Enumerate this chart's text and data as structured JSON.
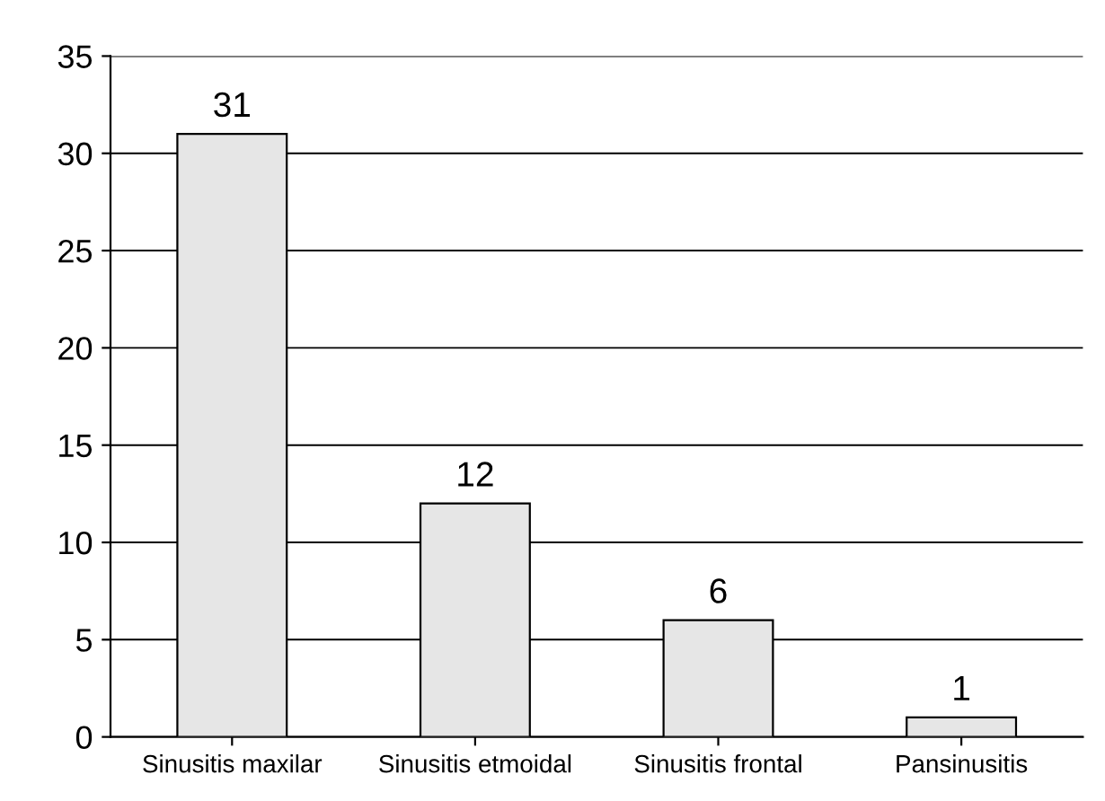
{
  "chart_data": {
    "type": "bar",
    "categories": [
      "Sinusitis maxilar",
      "Sinusitis etmoidal",
      "Sinusitis frontal",
      "Pansinusitis"
    ],
    "values": [
      31,
      12,
      6,
      1
    ],
    "color": "#e6e6e6",
    "ylim": [
      0,
      35
    ],
    "yticks": [
      0,
      5,
      10,
      15,
      20,
      25,
      30,
      35
    ],
    "grid": "y",
    "data_labels": true,
    "legend": false
  }
}
